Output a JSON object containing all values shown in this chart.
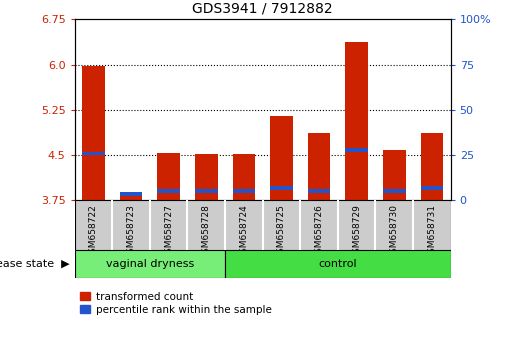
{
  "title": "GDS3941 / 7912882",
  "samples": [
    "GSM658722",
    "GSM658723",
    "GSM658727",
    "GSM658728",
    "GSM658724",
    "GSM658725",
    "GSM658726",
    "GSM658729",
    "GSM658730",
    "GSM658731"
  ],
  "groups": [
    "vaginal dryness",
    "vaginal dryness",
    "vaginal dryness",
    "vaginal dryness",
    "control",
    "control",
    "control",
    "control",
    "control",
    "control"
  ],
  "red_top": [
    5.97,
    3.87,
    4.53,
    4.52,
    4.52,
    5.15,
    4.87,
    6.38,
    4.58,
    4.87
  ],
  "blue_bottom": [
    4.5,
    3.82,
    3.87,
    3.87,
    3.87,
    3.92,
    3.87,
    4.55,
    3.87,
    3.92
  ],
  "blue_top": [
    4.55,
    3.88,
    3.93,
    3.93,
    3.93,
    3.98,
    3.93,
    4.61,
    3.93,
    3.98
  ],
  "ymin": 3.75,
  "ymax": 6.75,
  "yticks_left": [
    3.75,
    4.5,
    5.25,
    6.0,
    6.75
  ],
  "yticks_right": [
    0,
    25,
    50,
    75,
    100
  ],
  "dotted_lines": [
    4.5,
    5.25,
    6.0
  ],
  "bar_width": 0.6,
  "red_color": "#CC2200",
  "blue_color": "#2255CC",
  "vag_color": "#77EE77",
  "ctrl_color": "#44DD44",
  "axis_left_color": "#CC2200",
  "axis_right_color": "#2255CC",
  "legend_red_label": "transformed count",
  "legend_blue_label": "percentile rank within the sample",
  "disease_state_label": "disease state",
  "n_vag": 4,
  "n_ctrl": 6
}
